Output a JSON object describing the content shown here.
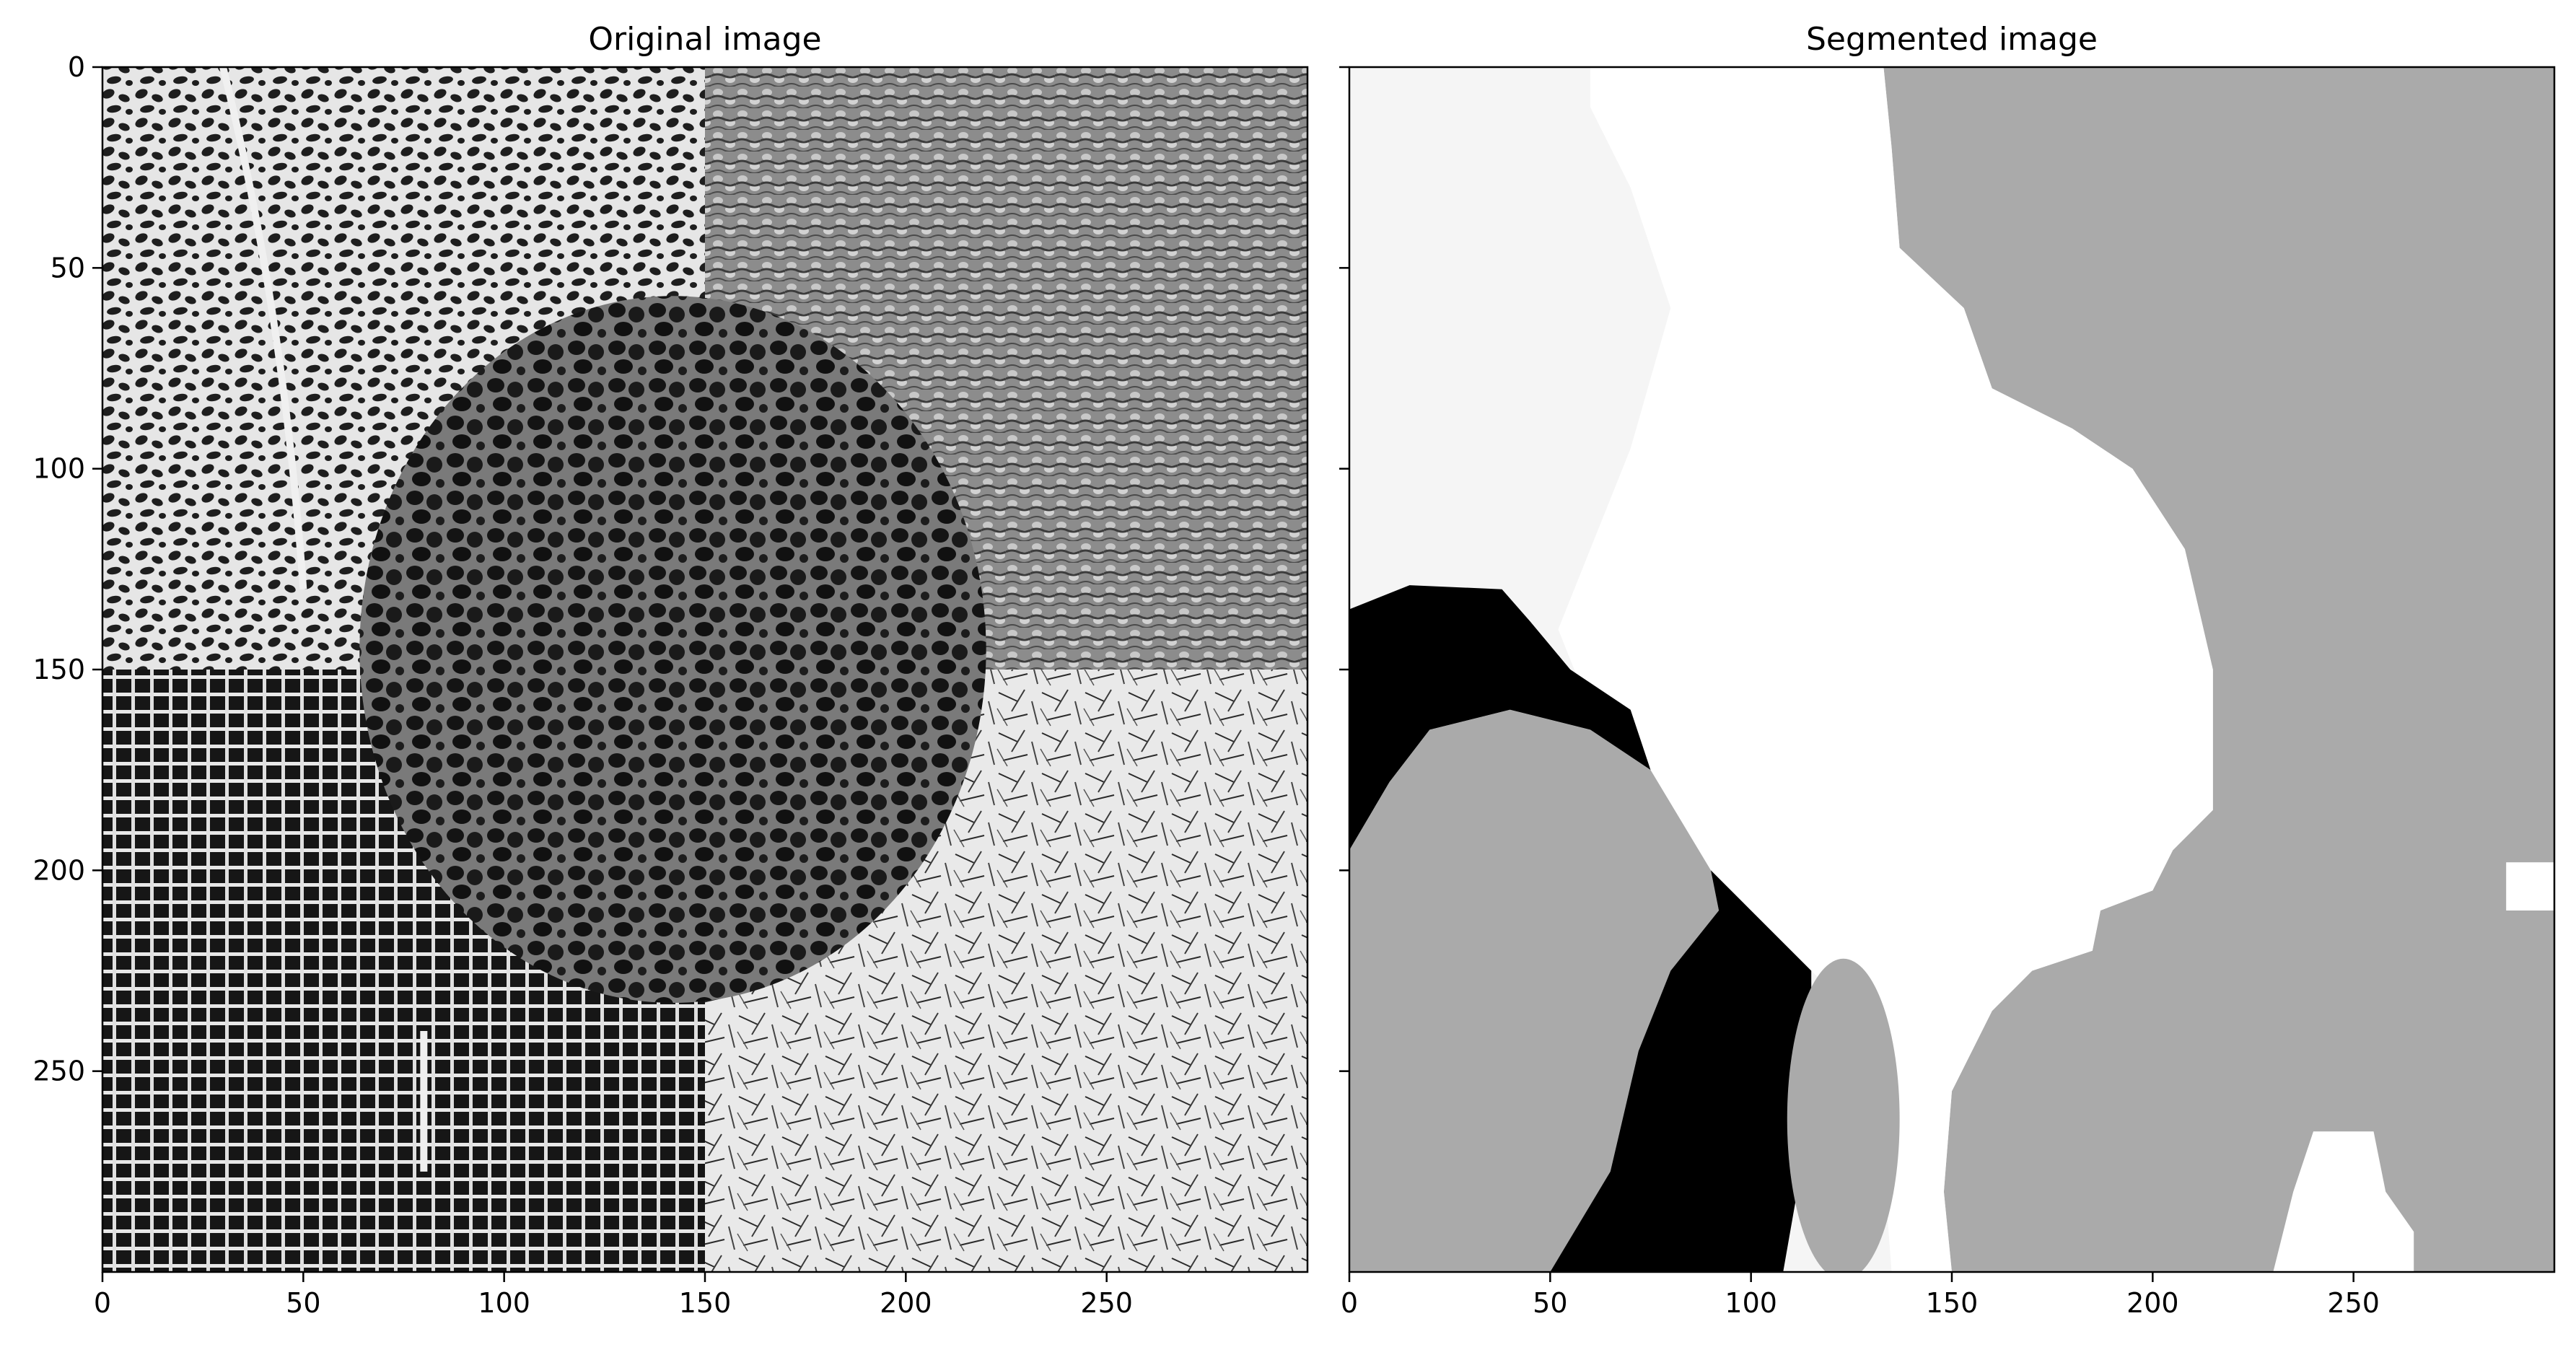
{
  "chart_data": [
    {
      "type": "image",
      "title": "Original image",
      "xlim": [
        0,
        300
      ],
      "ylim": [
        300,
        0
      ],
      "x_ticks": [
        0,
        50,
        100,
        150,
        200,
        250
      ],
      "y_ticks": [
        0,
        50,
        100,
        150,
        200,
        250
      ],
      "colormap": "gray",
      "regions": [
        {
          "texture": "leaf-vein mesh",
          "shade": "#8a8a8a"
        },
        {
          "texture": "bumpy dense texture",
          "shade": "#7c7c7c"
        },
        {
          "texture": "woven grid",
          "shade": "#6e6e6e"
        },
        {
          "texture": "scattered straw fibers",
          "shade": "#dcdcdc"
        },
        {
          "texture": "round cellular bubbles",
          "shade": "#3a3a3a"
        }
      ]
    },
    {
      "type": "image",
      "title": "Segmented image",
      "xlim": [
        0,
        300
      ],
      "ylim": [
        300,
        0
      ],
      "x_ticks": [
        0,
        50,
        100,
        150,
        200,
        250
      ],
      "y_ticks": [
        0,
        50,
        100,
        150,
        200,
        250
      ],
      "y_tick_labels_visible": false,
      "colormap": "gray",
      "segment_colors": [
        "#f5f5f5",
        "#ffffff",
        "#aaaaaa",
        "#000000",
        "#888888"
      ]
    }
  ]
}
